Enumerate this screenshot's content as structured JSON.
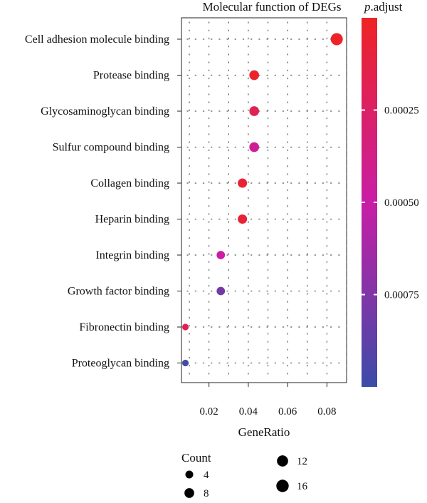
{
  "chart_data": {
    "type": "scatter",
    "title": "Molecular function of DEGs",
    "xlabel": "GeneRatio",
    "ylabel": "",
    "xlim": [
      0.006,
      0.09
    ],
    "x_ticks": [
      0.02,
      0.04,
      0.06,
      0.08
    ],
    "x_tick_labels": [
      "0.02",
      "0.04",
      "0.06",
      "0.08"
    ],
    "grid": true,
    "categories": [
      "Cell adhesion molecule binding",
      "Protease binding",
      "Glycosaminoglycan binding",
      "Sulfur compound binding",
      "Collagen binding",
      "Heparin binding",
      "Integrin binding",
      "Growth factor binding",
      "Fibronectin binding",
      "Proteoglycan binding"
    ],
    "points": [
      {
        "category": "Cell adhesion molecule binding",
        "gene_ratio": 0.085,
        "count": 15,
        "p_adjust": 1e-05
      },
      {
        "category": "Protease binding",
        "gene_ratio": 0.043,
        "count": 8,
        "p_adjust": 3e-05
      },
      {
        "category": "Glycosaminoglycan binding",
        "gene_ratio": 0.043,
        "count": 8,
        "p_adjust": 0.00018
      },
      {
        "category": "Sulfur compound binding",
        "gene_ratio": 0.043,
        "count": 8,
        "p_adjust": 0.00043
      },
      {
        "category": "Collagen binding",
        "gene_ratio": 0.037,
        "count": 7,
        "p_adjust": 7e-05
      },
      {
        "category": "Heparin binding",
        "gene_ratio": 0.037,
        "count": 7,
        "p_adjust": 7e-05
      },
      {
        "category": "Integrin binding",
        "gene_ratio": 0.026,
        "count": 5,
        "p_adjust": 0.00048
      },
      {
        "category": "Growth factor binding",
        "gene_ratio": 0.026,
        "count": 5,
        "p_adjust": 0.0008
      },
      {
        "category": "Fibronectin binding",
        "gene_ratio": 0.008,
        "count": 2,
        "p_adjust": 0.00018
      },
      {
        "category": "Proteoglycan binding",
        "gene_ratio": 0.008,
        "count": 2,
        "p_adjust": 0.00098
      }
    ],
    "color_legend": {
      "title_italic": "p",
      "title_rest": ".adjust",
      "range": [
        0.0,
        0.001
      ],
      "ticks": [
        0.00025,
        0.0005,
        0.00075
      ],
      "tick_labels": [
        "0.00025",
        "0.00050",
        "0.00075"
      ],
      "low_color": "#ee2424",
      "mid_color": "#c81ea6",
      "high_color": "#3b4ca8",
      "placement": "right"
    },
    "size_legend": {
      "title": "Count",
      "values": [
        4,
        8,
        12,
        16
      ],
      "labels": [
        "4",
        "8",
        "12",
        "16"
      ],
      "placement": "bottom"
    }
  }
}
